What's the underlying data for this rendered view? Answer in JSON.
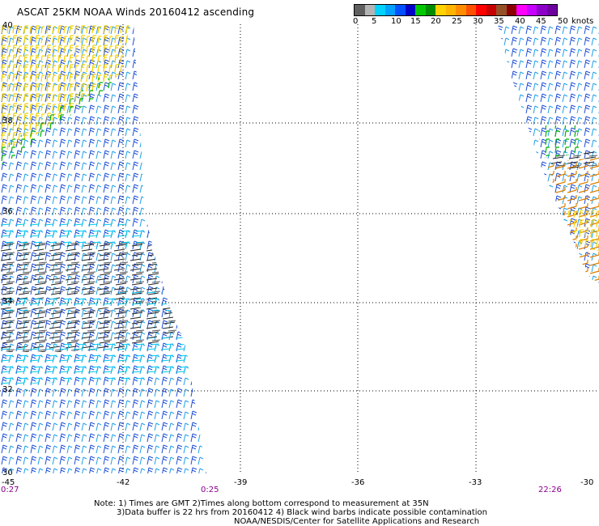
{
  "header": {
    "title": "ASCAT 25KM NOAA Winds 20160412 ascending"
  },
  "legend": {
    "colors": [
      "#606060",
      "#b4b4b4",
      "#00d2ff",
      "#00a0ff",
      "#0050ff",
      "#0000c8",
      "#00c800",
      "#008c00",
      "#ffd200",
      "#ffb400",
      "#ff8c00",
      "#ff5000",
      "#ff0000",
      "#c80000",
      "#965028",
      "#8c0000",
      "#ff00ff",
      "#c800ff",
      "#8c00c8",
      "#6e00a0"
    ],
    "labels": [
      "0",
      "5",
      "10",
      "15",
      "20",
      "25",
      "30",
      "35",
      "40",
      "45",
      "50",
      "knots"
    ]
  },
  "map": {
    "lat_labels": [
      "40",
      "38",
      "36",
      "34",
      "32",
      "30"
    ],
    "lon_labels": [
      "-45",
      "-42",
      "-39",
      "-36",
      "-33",
      "-30"
    ],
    "time_labels": [
      "0:27",
      "0:25",
      "22:26"
    ]
  },
  "notes": {
    "line1": "Note: 1) Times are GMT 2)Times along bottom correspond to measurement at 35N",
    "line2": "3)Data buffer is 22 hrs from 20160412 4) Black wind barbs indicate possible contamination",
    "line3": "NOAA/NESDIS/Center for Satellite Applications and Research"
  }
}
